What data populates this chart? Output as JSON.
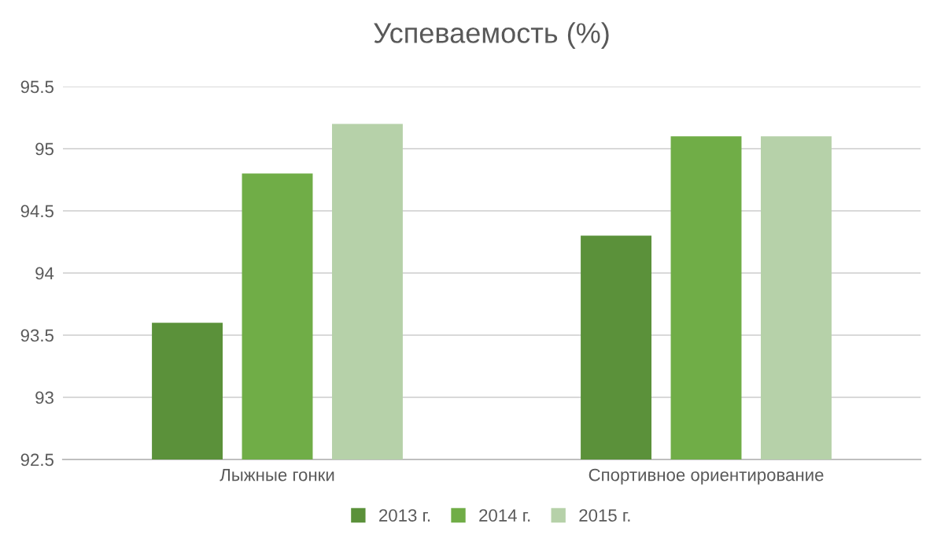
{
  "chart_data": {
    "type": "bar",
    "title": "Успеваемость (%)",
    "categories": [
      "Лыжные гонки",
      "Спортивное ориентирование"
    ],
    "series": [
      {
        "name": "2013 г.",
        "color": "#5b913a",
        "values": [
          93.6,
          94.3
        ]
      },
      {
        "name": "2014 г.",
        "color": "#70ad47",
        "values": [
          94.8,
          95.1
        ]
      },
      {
        "name": "2015 г.",
        "color": "#b6d1a9",
        "values": [
          95.2,
          95.1
        ]
      }
    ],
    "ylim": [
      92.5,
      95.5
    ],
    "yticks": [
      92.5,
      93,
      93.5,
      94,
      94.5,
      95,
      95.5
    ],
    "grid": "y",
    "legend": "bottom"
  }
}
